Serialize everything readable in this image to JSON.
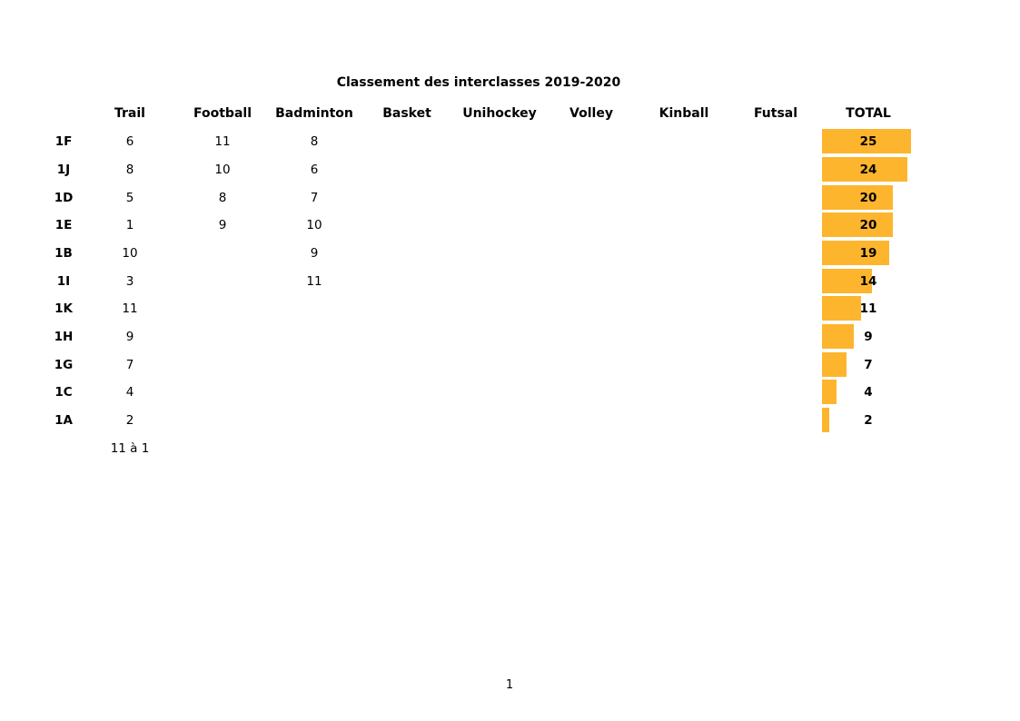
{
  "page_number": "1",
  "colors": {
    "bar": "#FDB52E",
    "text": "#000000",
    "background": "#FFFFFF"
  },
  "chart_data": {
    "type": "bar",
    "orientation": "horizontal",
    "title": "Classement des interclasses 2019-2020",
    "columns": [
      "Trail",
      "Football",
      "Badminton",
      "Basket",
      "Unihockey",
      "Volley",
      "Kinball",
      "Futsal",
      "TOTAL"
    ],
    "rows": [
      {
        "label": "1F",
        "trail": "6",
        "football": "11",
        "badminton": "8",
        "total": 25
      },
      {
        "label": "1J",
        "trail": "8",
        "football": "10",
        "badminton": "6",
        "total": 24
      },
      {
        "label": "1D",
        "trail": "5",
        "football": "8",
        "badminton": "7",
        "total": 20
      },
      {
        "label": "1E",
        "trail": "1",
        "football": "9",
        "badminton": "10",
        "total": 20
      },
      {
        "label": "1B",
        "trail": "10",
        "football": "",
        "badminton": "9",
        "total": 19
      },
      {
        "label": "1I",
        "trail": "3",
        "football": "",
        "badminton": "11",
        "total": 14
      },
      {
        "label": "1K",
        "trail": "11",
        "football": "",
        "badminton": "",
        "total": 11
      },
      {
        "label": "1H",
        "trail": "9",
        "football": "",
        "badminton": "",
        "total": 9
      },
      {
        "label": "1G",
        "trail": "7",
        "football": "",
        "badminton": "",
        "total": 7
      },
      {
        "label": "1C",
        "trail": "4",
        "football": "",
        "badminton": "",
        "total": 4
      },
      {
        "label": "1A",
        "trail": "2",
        "football": "",
        "badminton": "",
        "total": 2
      }
    ],
    "footnote": "11 à 1",
    "xlim": [
      0,
      26
    ],
    "grid": false,
    "legend": "none"
  }
}
